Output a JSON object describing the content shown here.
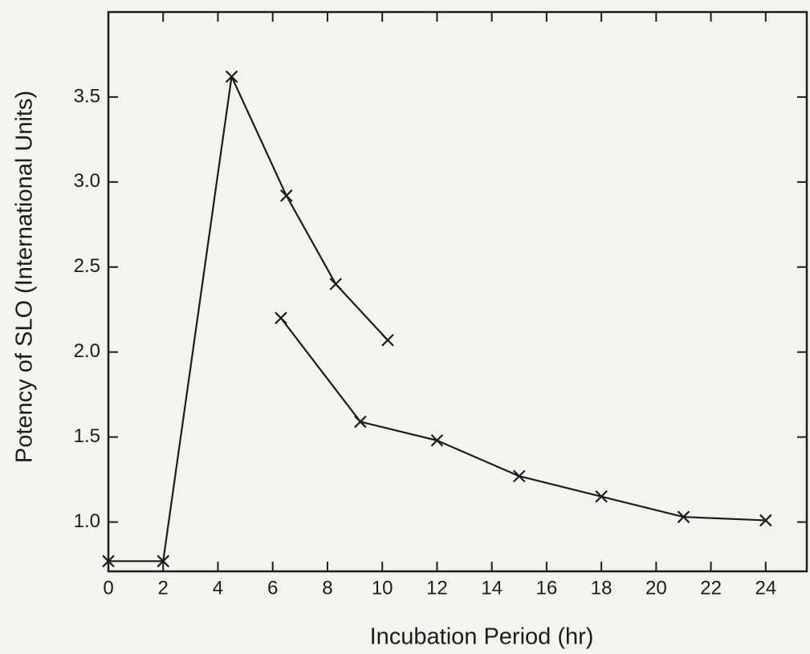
{
  "chart_data": {
    "type": "line",
    "x_label": "Incubation Period (hr)",
    "y_label": "Potency of SLO (International Units)",
    "xlim": [
      0,
      25.5
    ],
    "ylim": [
      0.71,
      4.0
    ],
    "xticks": [
      0,
      2,
      4,
      6,
      8,
      10,
      12,
      14,
      16,
      18,
      20,
      22,
      24
    ],
    "yticks": [
      {
        "value": 1,
        "label": "1.0"
      },
      1.5,
      {
        "value": 2,
        "label": "2.0"
      },
      2.5,
      {
        "value": 3,
        "label": "3.0"
      },
      3.5
    ],
    "grid": false,
    "color": "#1c1c1c",
    "series": [
      {
        "x": [
          0,
          2,
          4.5,
          6.5,
          8.3,
          10.2
        ],
        "values": [
          0.77,
          0.77,
          3.62,
          2.92,
          2.4,
          2.07
        ]
      },
      {
        "x": [
          6.3,
          9.2,
          12,
          15,
          18,
          21,
          24
        ],
        "values": [
          2.2,
          1.59,
          1.48,
          1.27,
          1.15,
          1.03,
          1.01
        ]
      }
    ]
  }
}
